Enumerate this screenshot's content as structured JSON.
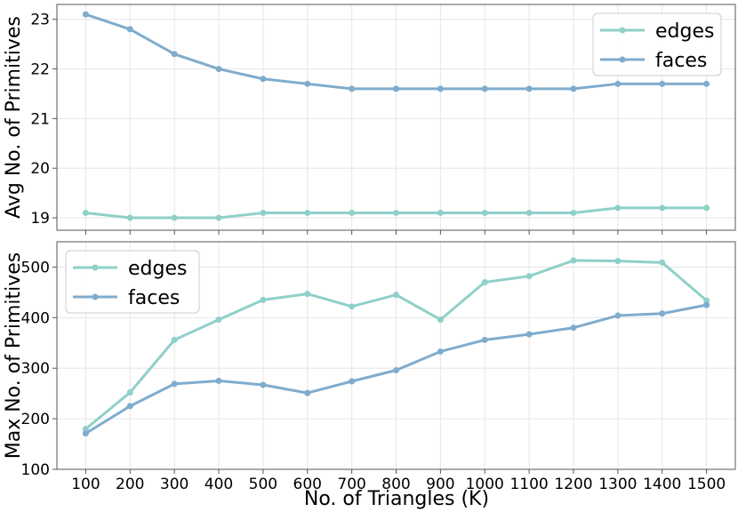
{
  "figure": {
    "xlabel": "No. of Triangles (K)"
  },
  "chart_data": [
    {
      "type": "line",
      "title": "",
      "xlabel": "",
      "ylabel": "Avg No. of Primitives",
      "x": [
        100,
        200,
        300,
        400,
        500,
        600,
        700,
        800,
        900,
        1000,
        1100,
        1200,
        1300,
        1400,
        1500
      ],
      "xlim": [
        35,
        1565
      ],
      "ylim": [
        18.75,
        23.3
      ],
      "yticks": [
        19,
        20,
        21,
        22,
        23
      ],
      "grid": true,
      "legend": "top-right",
      "series": [
        {
          "name": "edges",
          "color": "#8fd0c9",
          "values": [
            19.1,
            19.0,
            19.0,
            19.0,
            19.1,
            19.1,
            19.1,
            19.1,
            19.1,
            19.1,
            19.1,
            19.1,
            19.2,
            19.2,
            19.2
          ]
        },
        {
          "name": "faces",
          "color": "#7faccd",
          "values": [
            23.1,
            22.8,
            22.3,
            22.0,
            21.8,
            21.7,
            21.6,
            21.6,
            21.6,
            21.6,
            21.6,
            21.6,
            21.7,
            21.7,
            21.7
          ]
        }
      ]
    },
    {
      "type": "line",
      "title": "",
      "xlabel": "No. of Triangles (K)",
      "ylabel": "Max No. of Primitives",
      "x": [
        100,
        200,
        300,
        400,
        500,
        600,
        700,
        800,
        900,
        1000,
        1100,
        1200,
        1300,
        1400,
        1500
      ],
      "xticks": [
        "100",
        "200",
        "300",
        "400",
        "500",
        "600",
        "700",
        "800",
        "900",
        "1000",
        "1100",
        "1200",
        "1300",
        "1400",
        "1500"
      ],
      "xlim": [
        35,
        1565
      ],
      "ylim": [
        100,
        550
      ],
      "yticks": [
        100,
        200,
        300,
        400,
        500
      ],
      "grid": true,
      "legend": "top-left",
      "series": [
        {
          "name": "edges",
          "color": "#8fd0c9",
          "values": [
            180,
            252,
            356,
            396,
            435,
            447,
            422,
            445,
            396,
            470,
            482,
            513,
            512,
            509,
            434
          ]
        },
        {
          "name": "faces",
          "color": "#7faccd",
          "values": [
            171,
            225,
            269,
            275,
            267,
            251,
            274,
            296,
            333,
            356,
            367,
            380,
            404,
            408,
            425
          ]
        }
      ]
    }
  ]
}
